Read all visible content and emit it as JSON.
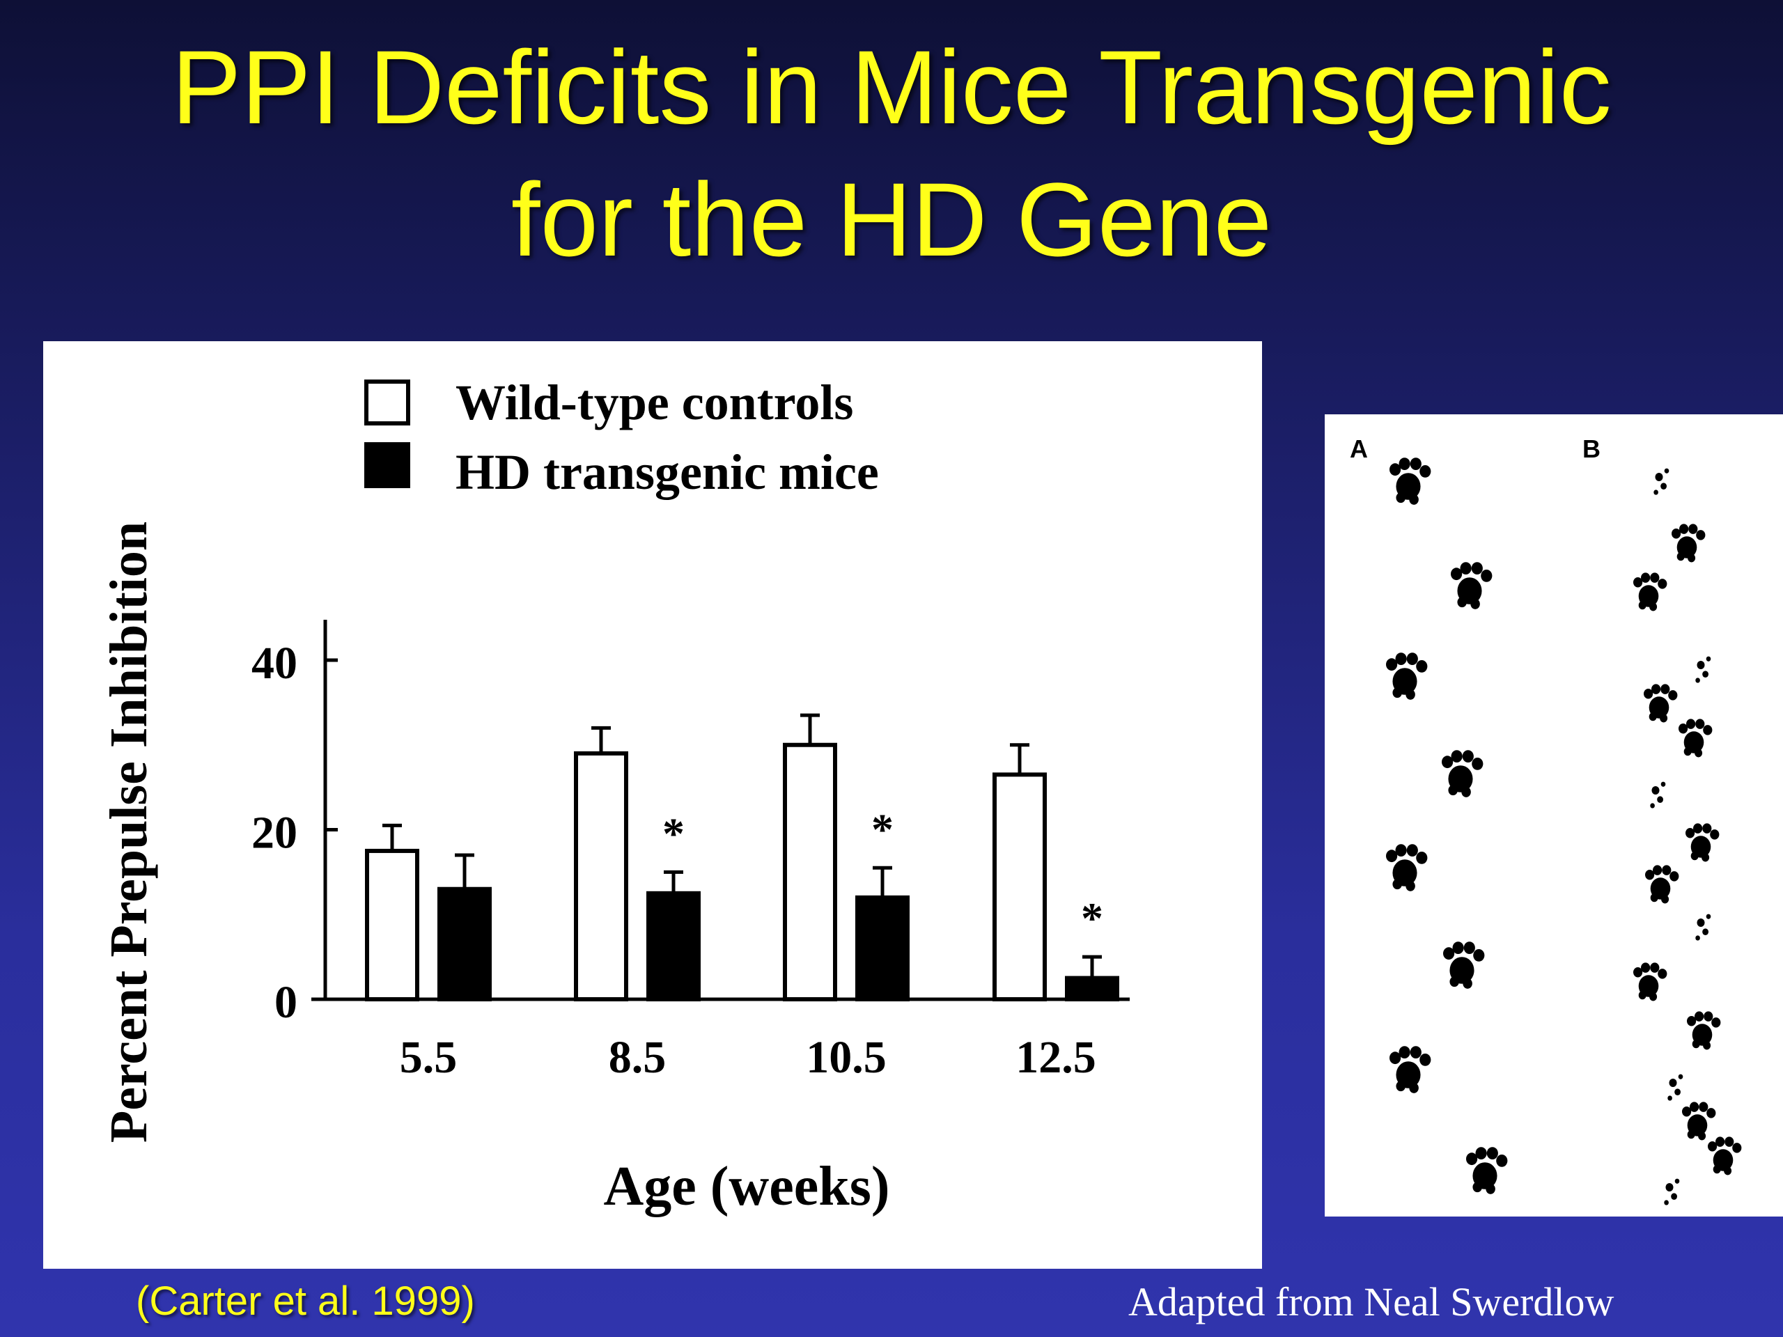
{
  "slide": {
    "title_line1": "PPI Deficits in Mice Transgenic",
    "title_line2": "for the HD Gene",
    "citation": "(Carter et al. 1999)",
    "credit": "Adapted from  Neal Swerdlow",
    "title_color": "#ffff1a",
    "background_color": "#1c1f6a"
  },
  "gait_figure": {
    "panel_a_label": "A",
    "panel_b_label": "B"
  },
  "chart_data": {
    "type": "bar",
    "title": "",
    "xlabel": "Age (weeks)",
    "ylabel": "Percent Prepulse Inhibition",
    "categories": [
      "5.5",
      "8.5",
      "10.5",
      "12.5"
    ],
    "yticks": [
      "0",
      "20",
      "40"
    ],
    "ylim": [
      0,
      46
    ],
    "legend_position": "top",
    "grid": false,
    "significance_marker": "*",
    "series": [
      {
        "name": "Wild-type controls",
        "fill": "#ffffff",
        "values": [
          17.5,
          29,
          30,
          26.5
        ],
        "errors": [
          3,
          3,
          3.5,
          3.5
        ],
        "significant": [
          false,
          false,
          false,
          false
        ]
      },
      {
        "name": "HD transgenic mice",
        "fill": "#000000",
        "values": [
          13,
          12.5,
          12,
          2.5
        ],
        "errors": [
          4,
          2.5,
          3.5,
          2.5
        ],
        "significant": [
          false,
          true,
          true,
          true
        ]
      }
    ]
  }
}
